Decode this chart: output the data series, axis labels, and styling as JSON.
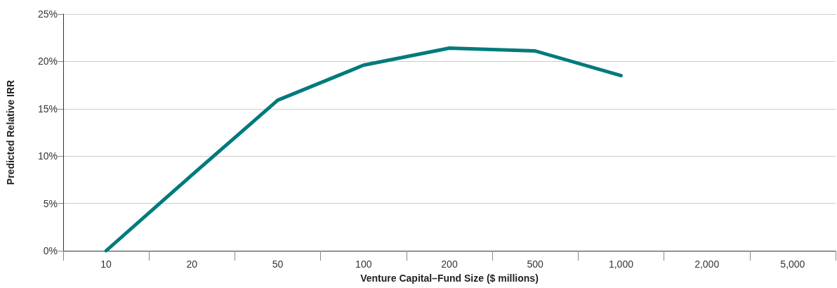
{
  "chart_data": {
    "type": "line",
    "xlabel": "Venture Capital–Fund Size ($ millions)",
    "ylabel": "Predicted Relative IRR",
    "categories": [
      "10",
      "20",
      "50",
      "100",
      "200",
      "500",
      "1,000",
      "2,000",
      "5,000"
    ],
    "series": [
      {
        "color": "#007a7c",
        "values": [
          0,
          8,
          15.9,
          19.6,
          21.4,
          21.1,
          18.5,
          null,
          null
        ]
      }
    ],
    "ylim": [
      0,
      25
    ],
    "yticks": [
      {
        "value": 0,
        "label": "0%"
      },
      {
        "value": 5,
        "label": "5%"
      },
      {
        "value": 10,
        "label": "10%"
      },
      {
        "value": 15,
        "label": "15%"
      },
      {
        "value": 20,
        "label": "20%"
      },
      {
        "value": 25,
        "label": "25%"
      }
    ],
    "grid": "y",
    "marker": "none",
    "line_style": "solid"
  }
}
